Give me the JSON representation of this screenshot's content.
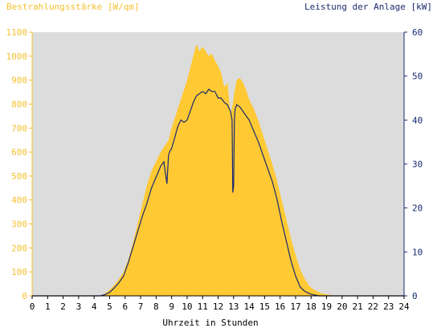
{
  "colors": {
    "plot_bg": "#dcdcdc",
    "irradiance_fill": "#ffc933",
    "irradiance_axis": "#f5c030",
    "power_line": "#1a2a6e",
    "power_axis": "#1a2a6e",
    "x_axis": "#000000"
  },
  "chart_data": {
    "type": "area",
    "ylabel_left": "Bestrahlungsstärke [W/qm]",
    "ylabel_right": "Leistung der Anlage [kW]",
    "xlabel": "Uhrzeit in Stunden",
    "xlim": [
      0,
      24
    ],
    "ylim_left": [
      0,
      1100
    ],
    "ylim_right": [
      0,
      60
    ],
    "x_ticks": [
      "0",
      "1",
      "2",
      "3",
      "4",
      "5",
      "6",
      "7",
      "8",
      "9",
      "10",
      "11",
      "12",
      "13",
      "14",
      "15",
      "16",
      "17",
      "18",
      "19",
      "20",
      "21",
      "22",
      "23",
      "24"
    ],
    "y_ticks_left": [
      "0",
      "100",
      "200",
      "300",
      "400",
      "500",
      "600",
      "700",
      "800",
      "900",
      "1000",
      "1100"
    ],
    "y_ticks_right": [
      "0",
      "10",
      "20",
      "30",
      "40",
      "50",
      "60"
    ],
    "grid": false,
    "series": [
      {
        "name": "Bestrahlungsstärke",
        "axis": "left",
        "style": "area",
        "x": [
          0,
          4.4,
          4.7,
          5.0,
          5.3,
          5.6,
          5.9,
          6.2,
          6.5,
          6.8,
          7.1,
          7.4,
          7.7,
          8.0,
          8.3,
          8.6,
          8.8,
          9.0,
          9.2,
          9.4,
          9.6,
          9.8,
          10.0,
          10.2,
          10.4,
          10.6,
          10.8,
          11.0,
          11.2,
          11.4,
          11.6,
          11.8,
          12.0,
          12.2,
          12.4,
          12.6,
          12.8,
          12.95,
          13.05,
          13.2,
          13.4,
          13.6,
          13.8,
          14.0,
          14.3,
          14.6,
          14.9,
          15.2,
          15.5,
          15.8,
          16.1,
          16.4,
          16.7,
          17.0,
          17.3,
          17.6,
          17.9,
          18.2,
          18.5,
          18.8,
          19.1,
          19.4,
          19.7,
          20.0,
          20.3,
          24
        ],
        "y": [
          0,
          0,
          10,
          25,
          45,
          70,
          100,
          150,
          220,
          300,
          380,
          460,
          520,
          560,
          600,
          630,
          650,
          700,
          740,
          780,
          820,
          860,
          900,
          950,
          1000,
          1050,
          1020,
          1040,
          1020,
          1000,
          1010,
          980,
          960,
          930,
          870,
          890,
          760,
          800,
          850,
          900,
          910,
          890,
          860,
          820,
          780,
          730,
          670,
          610,
          550,
          480,
          400,
          320,
          240,
          170,
          110,
          70,
          40,
          25,
          15,
          8,
          5,
          2,
          0,
          0,
          0,
          0
        ]
      },
      {
        "name": "Leistung",
        "axis": "right",
        "style": "line",
        "x": [
          0,
          4.4,
          4.7,
          5.0,
          5.3,
          5.6,
          5.9,
          6.2,
          6.5,
          6.8,
          7.1,
          7.4,
          7.7,
          8.0,
          8.3,
          8.5,
          8.7,
          8.8,
          8.9,
          9.0,
          9.2,
          9.4,
          9.6,
          9.8,
          10.0,
          10.2,
          10.4,
          10.6,
          10.8,
          11.0,
          11.2,
          11.4,
          11.6,
          11.8,
          12.0,
          12.2,
          12.4,
          12.6,
          12.8,
          12.9,
          12.95,
          13.0,
          13.05,
          13.1,
          13.2,
          13.4,
          13.6,
          13.8,
          14.0,
          14.3,
          14.6,
          14.9,
          15.2,
          15.5,
          15.8,
          16.1,
          16.4,
          16.7,
          17.0,
          17.3,
          17.6,
          17.9,
          18.2,
          18.5,
          18.8,
          19.1,
          19.4,
          19.7,
          20.0,
          24
        ],
        "y": [
          0,
          0,
          0.3,
          0.8,
          1.8,
          3.0,
          4.5,
          7.5,
          11.0,
          14.5,
          18.0,
          21.0,
          24.5,
          27.0,
          29.5,
          30.5,
          25.5,
          32.0,
          33.0,
          33.5,
          36.0,
          38.5,
          40.0,
          39.5,
          40.0,
          42.0,
          44.0,
          45.5,
          46.0,
          46.5,
          46.0,
          47.0,
          46.5,
          46.5,
          45.0,
          45.0,
          44.0,
          43.5,
          42.0,
          40.0,
          23.5,
          25.0,
          40.0,
          42.5,
          43.5,
          43.0,
          42.0,
          41.0,
          40.0,
          37.5,
          35.0,
          32.0,
          29.0,
          26.0,
          22.0,
          17.0,
          12.5,
          8.0,
          4.5,
          2.0,
          1.0,
          0.5,
          0.2,
          0,
          0,
          0,
          0,
          0,
          0,
          0
        ]
      }
    ]
  }
}
